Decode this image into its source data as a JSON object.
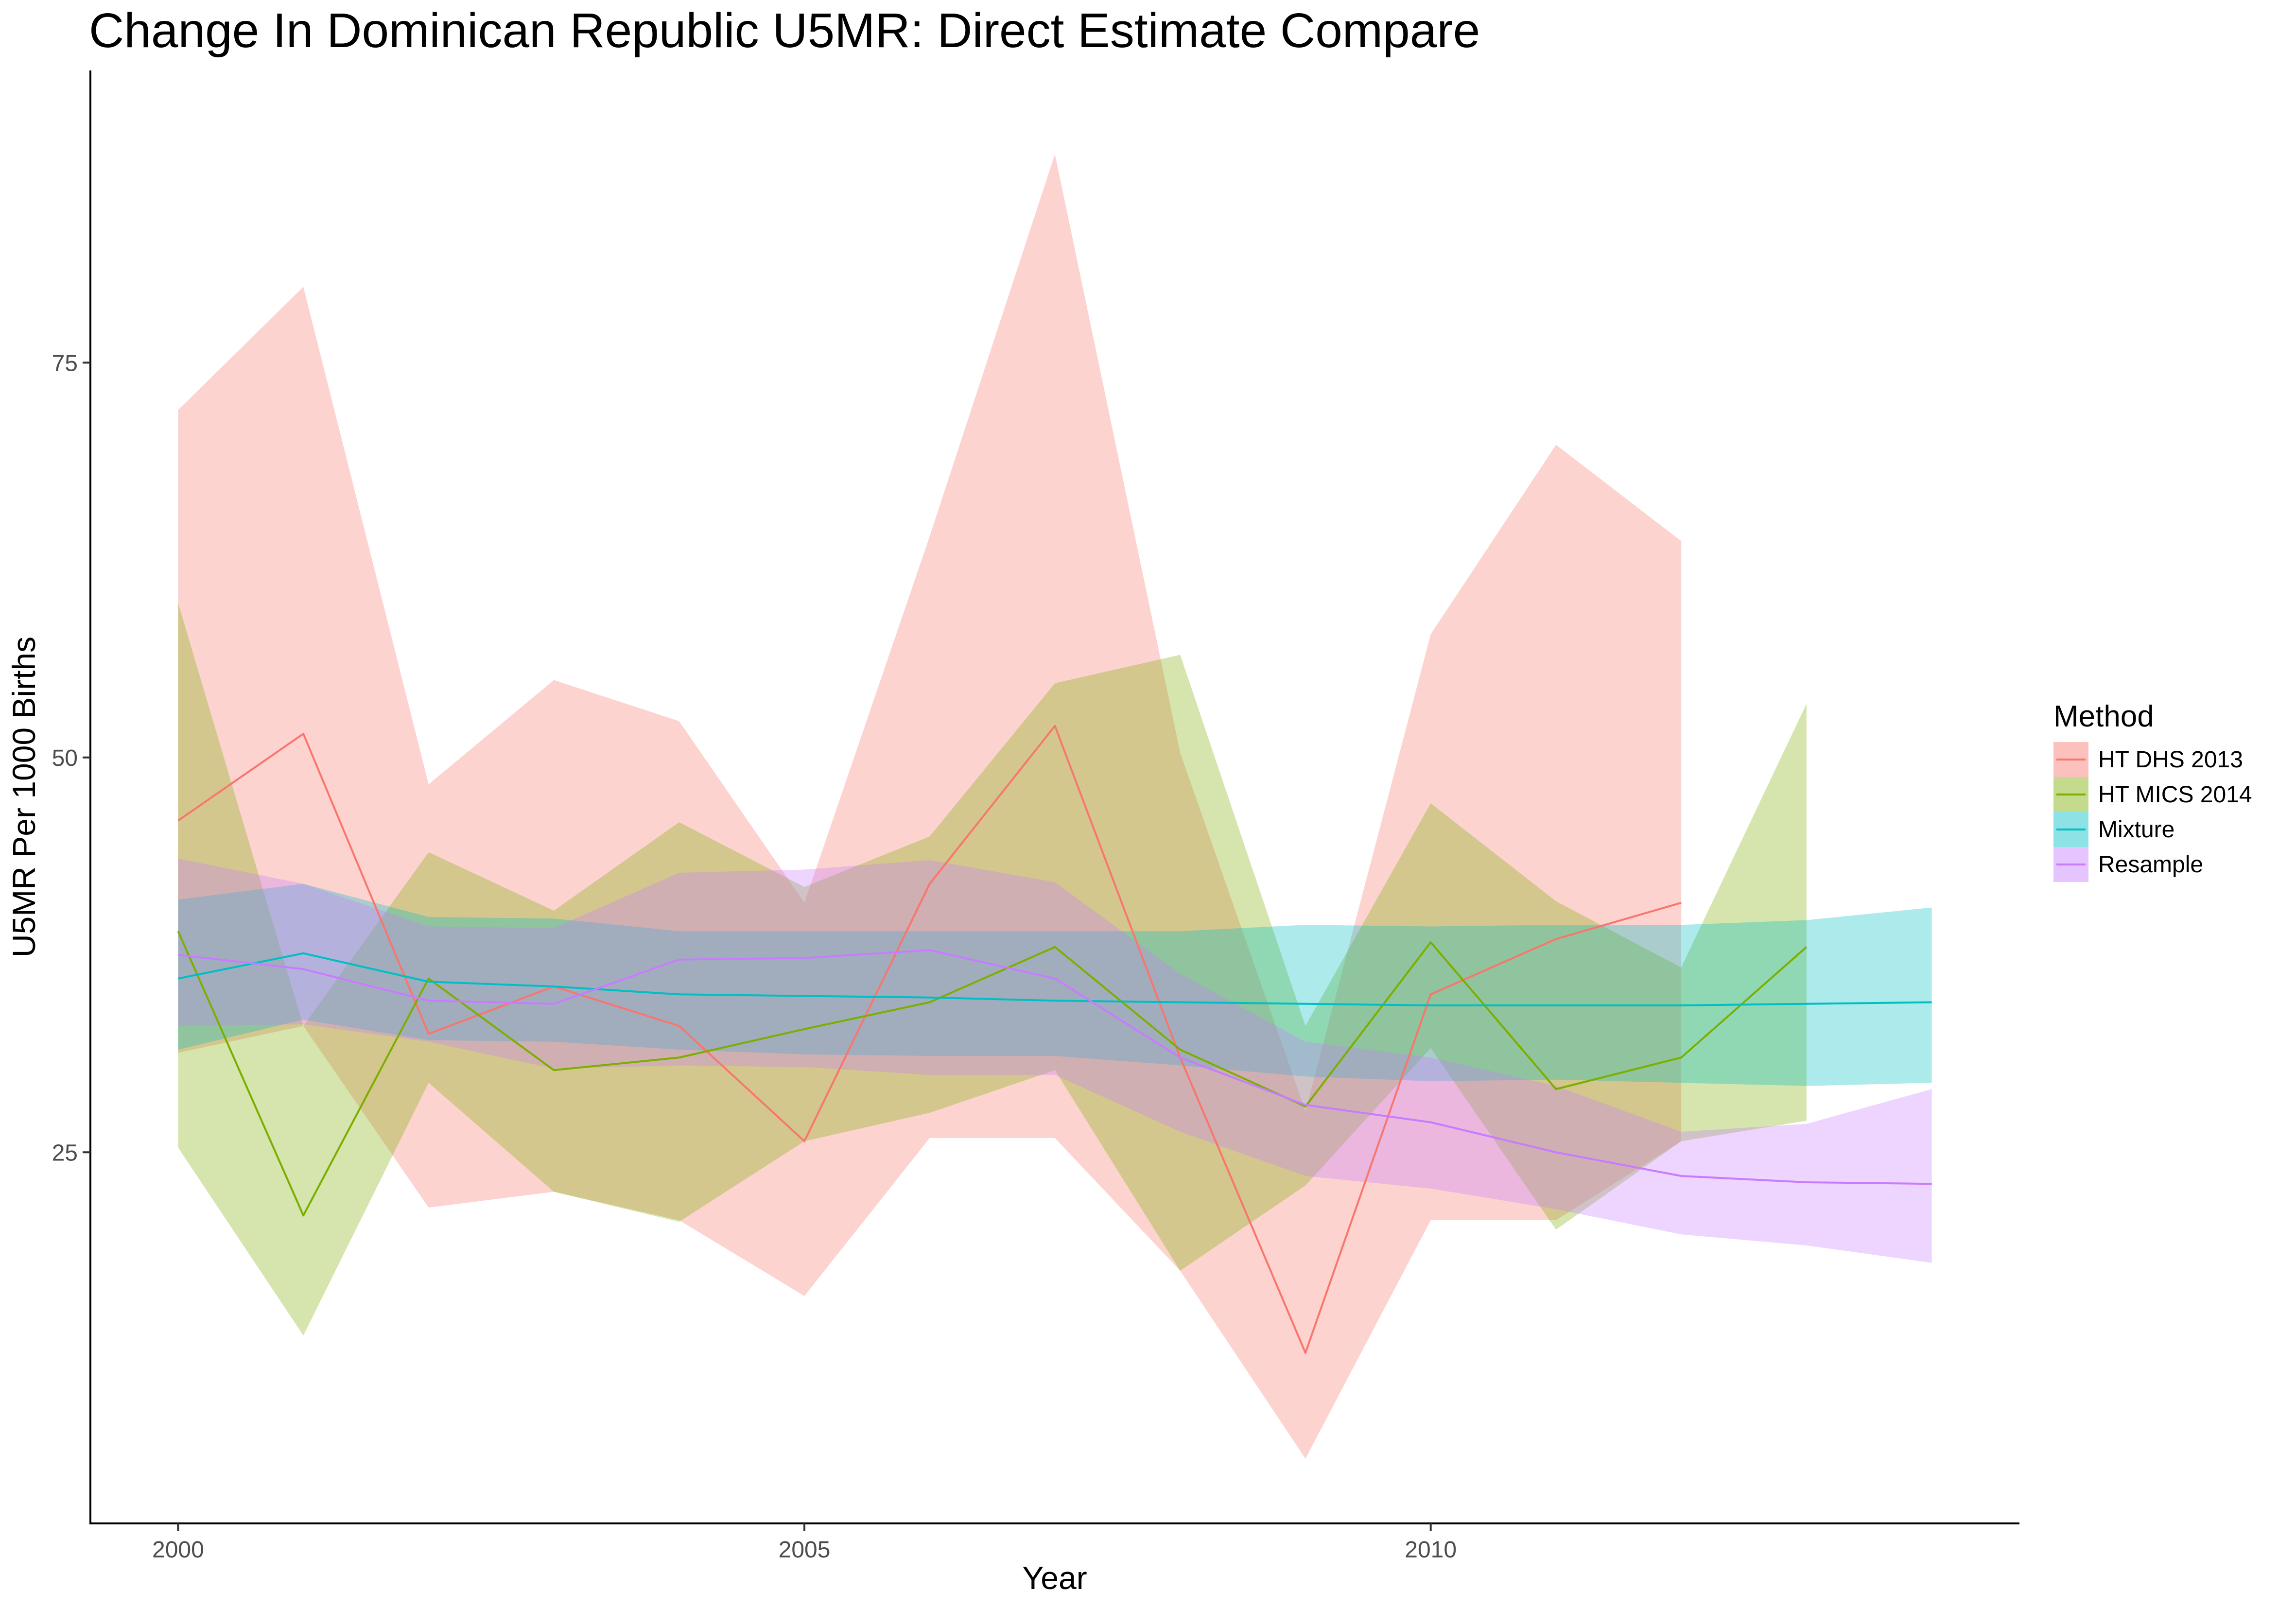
{
  "chart_data": {
    "type": "line",
    "title": "Change In Dominican Republic U5MR: Direct Estimate Compare",
    "xlabel": "Year",
    "ylabel": "U5MR Per 1000 Births",
    "xlim": [
      1999.3,
      2014.7
    ],
    "ylim": [
      1.5,
      93.5
    ],
    "xticks": [
      2000,
      2005,
      2010
    ],
    "yticks": [
      25,
      50,
      75
    ],
    "legend_title": "Method",
    "legend_position": "right",
    "grid": false,
    "series": [
      {
        "name": "HT DHS 2013",
        "color": "#F8766D",
        "x": [
          2000,
          2001,
          2002,
          2003,
          2004,
          2005,
          2006,
          2007,
          2008,
          2009,
          2010,
          2011,
          2012
        ],
        "values": [
          46.0,
          51.5,
          32.5,
          35.5,
          33.0,
          25.7,
          42.0,
          52.0,
          31.0,
          12.3,
          35.0,
          38.5,
          40.8
        ],
        "lower": [
          31.3,
          33.0,
          21.5,
          22.5,
          20.7,
          15.9,
          25.9,
          25.9,
          17.5,
          5.6,
          20.7,
          20.7,
          25.7
        ],
        "upper": [
          72.0,
          79.8,
          48.3,
          54.9,
          52.3,
          40.8,
          64.0,
          88.2,
          50.3,
          27.6,
          57.8,
          69.8,
          63.7
        ]
      },
      {
        "name": "HT MICS 2014",
        "color": "#7CAE00",
        "x": [
          2000,
          2001,
          2002,
          2003,
          2004,
          2005,
          2006,
          2007,
          2008,
          2009,
          2010,
          2011,
          2012,
          2013
        ],
        "values": [
          39.0,
          21.0,
          36.0,
          30.2,
          31.0,
          32.8,
          34.5,
          38.0,
          31.5,
          27.9,
          38.3,
          29.0,
          31.0,
          38.0
        ],
        "lower": [
          25.3,
          13.4,
          29.4,
          22.5,
          20.6,
          25.7,
          27.5,
          30.2,
          17.5,
          22.9,
          31.6,
          20.1,
          25.7,
          27.0
        ],
        "upper": [
          59.8,
          33.0,
          44.0,
          40.3,
          45.9,
          41.8,
          45.0,
          54.7,
          56.5,
          33.0,
          47.1,
          40.9,
          36.7,
          53.4
        ]
      },
      {
        "name": "Mixture",
        "color": "#00BFC4",
        "x": [
          2000,
          2001,
          2002,
          2003,
          2004,
          2005,
          2006,
          2007,
          2008,
          2009,
          2010,
          2011,
          2012,
          2013,
          2014
        ],
        "values": [
          36.0,
          37.6,
          35.8,
          35.5,
          35.0,
          34.9,
          34.8,
          34.6,
          34.5,
          34.4,
          34.3,
          34.3,
          34.3,
          34.4,
          34.5
        ],
        "lower": [
          31.5,
          33.4,
          32.1,
          32.0,
          31.5,
          31.2,
          31.1,
          31.1,
          30.5,
          29.8,
          29.5,
          29.6,
          29.4,
          29.2,
          29.4
        ],
        "upper": [
          41.0,
          42.0,
          39.9,
          39.8,
          39.0,
          39.0,
          39.0,
          39.0,
          39.0,
          39.4,
          39.3,
          39.4,
          39.4,
          39.7,
          40.5
        ]
      },
      {
        "name": "Resample",
        "color": "#C77CFF",
        "x": [
          2000,
          2001,
          2002,
          2003,
          2004,
          2005,
          2006,
          2007,
          2008,
          2009,
          2010,
          2011,
          2012,
          2013,
          2014
        ],
        "values": [
          37.5,
          36.6,
          34.6,
          34.4,
          37.2,
          37.3,
          37.8,
          36.0,
          31.0,
          28.0,
          26.9,
          25.0,
          23.5,
          23.1,
          23.0
        ],
        "lower": [
          33.0,
          33.1,
          32.0,
          30.3,
          30.5,
          30.4,
          29.9,
          29.9,
          26.3,
          23.5,
          22.7,
          21.4,
          19.8,
          19.1,
          18.0
        ],
        "upper": [
          43.6,
          42.0,
          39.3,
          39.2,
          42.7,
          42.9,
          43.5,
          42.1,
          36.3,
          32.0,
          31.0,
          29.2,
          26.3,
          26.8,
          29.0
        ]
      }
    ]
  }
}
